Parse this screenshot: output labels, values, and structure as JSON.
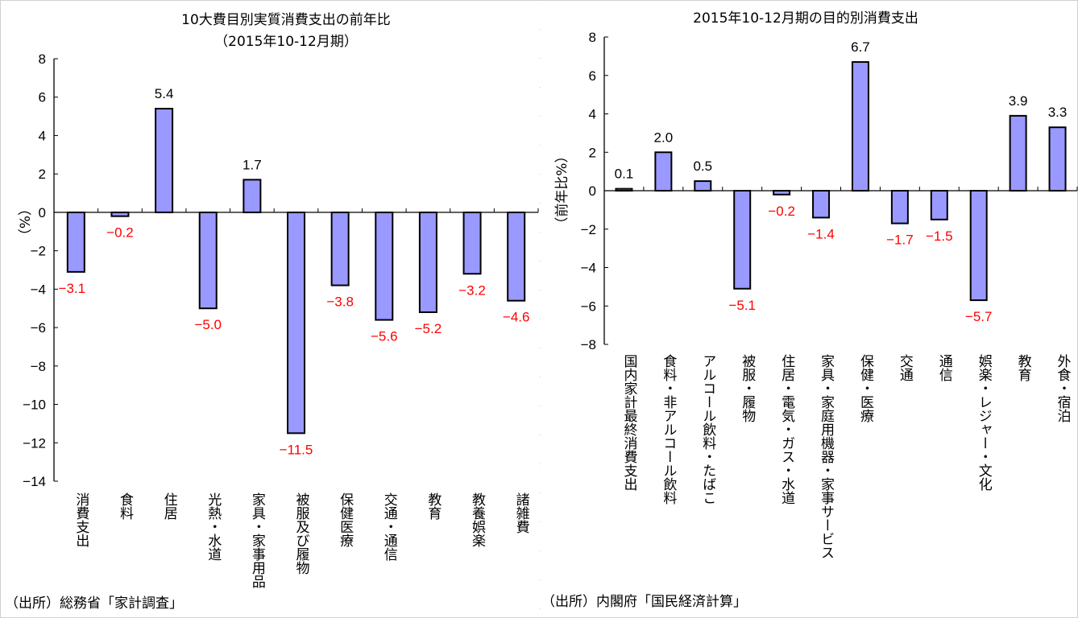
{
  "chart_data": [
    {
      "type": "bar",
      "title": "10大費目別実質消費支出の前年比",
      "subtitle": "（2015年10-12月期）",
      "ylabel": "（%）",
      "xlabel": "",
      "ylim": [
        -14,
        8
      ],
      "yticks": [
        8,
        6,
        4,
        2,
        0,
        -2,
        -4,
        -6,
        -8,
        -10,
        -12,
        -14
      ],
      "grid": false,
      "legend": "none",
      "source": "（出所）総務省「家計調査」",
      "categories": [
        "消費支出",
        "食料",
        "住居",
        "光熱・水道",
        "家具・家事用品",
        "被服及び履物",
        "保健医療",
        "交通・通信",
        "教育",
        "教養娯楽",
        "諸雑費"
      ],
      "values": [
        -3.1,
        -0.2,
        5.4,
        -5.0,
        1.7,
        -11.5,
        -3.8,
        -5.6,
        -5.2,
        -3.2,
        -4.6
      ],
      "data_labels": [
        "-3.1",
        "-0.2",
        "5.4",
        "-5.0",
        "1.7",
        "-11.5",
        "-3.8",
        "-5.6",
        "-5.2",
        "-3.2",
        "-4.6"
      ]
    },
    {
      "type": "bar",
      "title": "2015年10-12月期の目的別消費支出",
      "ylabel": "（前年比%）",
      "xlabel": "",
      "ylim": [
        -8,
        8
      ],
      "yticks": [
        8,
        6,
        4,
        2,
        0,
        -2,
        -4,
        -6,
        -8
      ],
      "grid": false,
      "legend": "none",
      "source": "（出所）内閣府「国民経済計算」",
      "categories": [
        "国内家計最終消費支出",
        "食料・非アルコール飲料",
        "アルコール飲料・たばこ",
        "被服・履物",
        "住居・電気・ガス・水道",
        "家具・家庭用機器・家事サービス",
        "保健・医療",
        "交通",
        "通信",
        "娯楽・レジャー・文化",
        "教育",
        "外食・宿泊"
      ],
      "values": [
        0.1,
        2.0,
        0.5,
        -5.1,
        -0.2,
        -1.4,
        6.7,
        -1.7,
        -1.5,
        -5.7,
        3.9,
        3.3
      ],
      "data_labels": [
        "0.1",
        "2.0",
        "0.5",
        "-5.1",
        "-0.2",
        "-1.4",
        "6.7",
        "-1.7",
        "-1.5",
        "-5.7",
        "3.9",
        "3.3"
      ]
    }
  ],
  "colors": {
    "bar_fill": "#9999ff",
    "bar_stroke": "#000000",
    "positive_label": "#000000",
    "negative_label": "#ff0000"
  }
}
